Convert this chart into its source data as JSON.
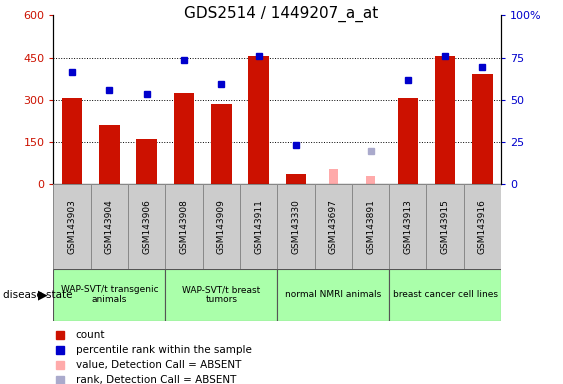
{
  "title": "GDS2514 / 1449207_a_at",
  "samples": [
    "GSM143903",
    "GSM143904",
    "GSM143906",
    "GSM143908",
    "GSM143909",
    "GSM143911",
    "GSM143330",
    "GSM143697",
    "GSM143891",
    "GSM143913",
    "GSM143915",
    "GSM143916"
  ],
  "count_values": [
    305,
    210,
    160,
    325,
    285,
    455,
    35,
    null,
    null,
    305,
    455,
    390
  ],
  "count_absent": [
    null,
    null,
    null,
    null,
    null,
    null,
    null,
    55,
    30,
    null,
    null,
    null
  ],
  "rank_values": [
    400,
    335,
    320,
    440,
    355,
    455,
    140,
    null,
    null,
    370,
    455,
    415
  ],
  "rank_absent": [
    null,
    null,
    null,
    null,
    null,
    null,
    null,
    null,
    120,
    null,
    null,
    null
  ],
  "group_info": [
    {
      "indices": [
        0,
        1,
        2
      ],
      "label": "WAP-SVT/t transgenic\nanimals",
      "color": "#aaffaa"
    },
    {
      "indices": [
        3,
        4,
        5
      ],
      "label": "WAP-SVT/t breast\ntumors",
      "color": "#aaffaa"
    },
    {
      "indices": [
        6,
        7,
        8
      ],
      "label": "normal NMRI animals",
      "color": "#aaffaa"
    },
    {
      "indices": [
        9,
        10,
        11
      ],
      "label": "breast cancer cell lines",
      "color": "#aaffaa"
    }
  ],
  "ylim_left": [
    0,
    600
  ],
  "ylim_right": [
    0,
    100
  ],
  "yticks_left": [
    0,
    150,
    300,
    450,
    600
  ],
  "yticks_right": [
    0,
    25,
    50,
    75,
    100
  ],
  "bar_color": "#cc1100",
  "bar_absent_color": "#ffaaaa",
  "rank_color": "#0000cc",
  "rank_absent_color": "#aaaacc",
  "sample_box_color": "#cccccc",
  "legend_items": [
    {
      "color": "#cc1100",
      "marker": "s",
      "label": "count"
    },
    {
      "color": "#0000cc",
      "marker": "s",
      "label": "percentile rank within the sample"
    },
    {
      "color": "#ffaaaa",
      "marker": "s",
      "label": "value, Detection Call = ABSENT"
    },
    {
      "color": "#aaaacc",
      "marker": "s",
      "label": "rank, Detection Call = ABSENT"
    }
  ]
}
